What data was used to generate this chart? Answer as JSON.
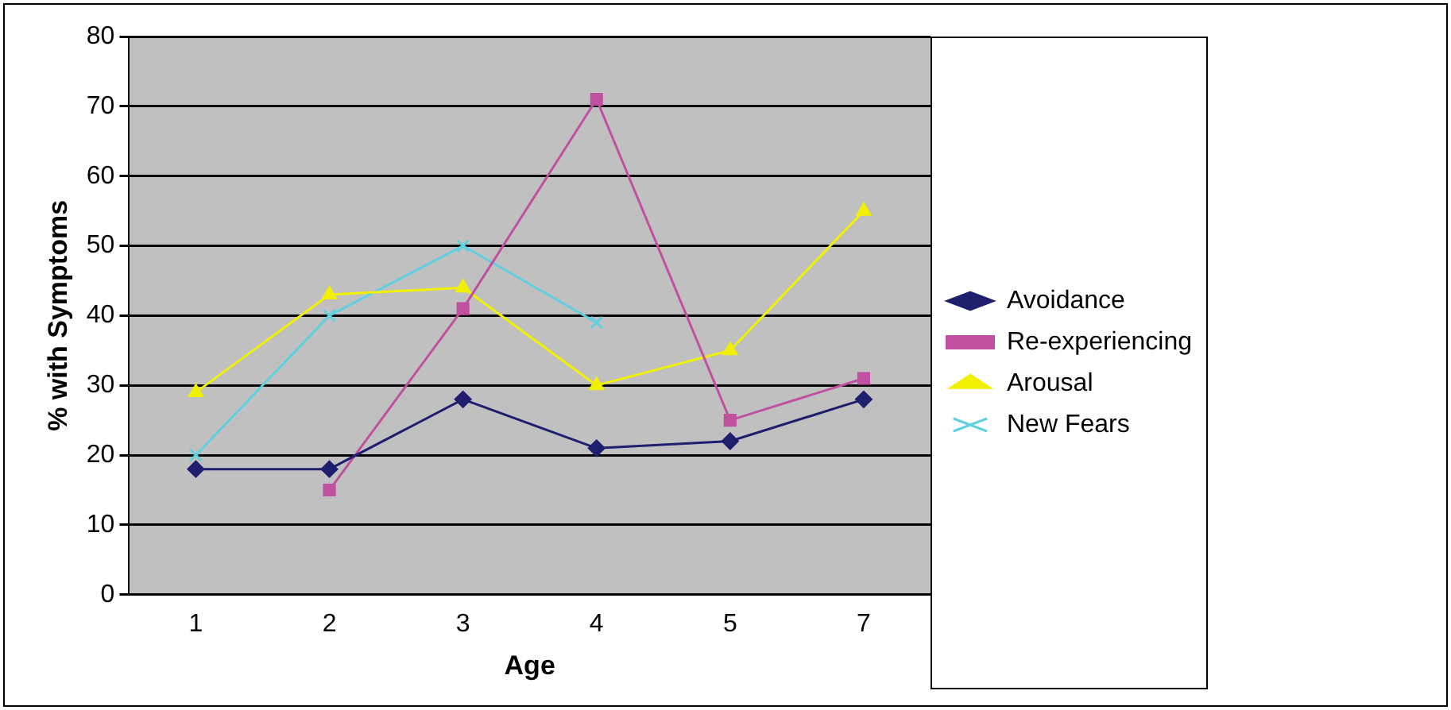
{
  "chart_data": {
    "type": "line",
    "xlabel": "Age",
    "ylabel": "% with Symptoms",
    "categories": [
      "1",
      "2",
      "3",
      "4",
      "5",
      "7"
    ],
    "ylim": [
      0,
      80
    ],
    "yticks": [
      0,
      10,
      20,
      30,
      40,
      50,
      60,
      70,
      80
    ],
    "grid": "y",
    "legend": "right",
    "series": [
      {
        "name": "Avoidance",
        "color": "#1f1f6e",
        "marker": "diamond",
        "values": [
          18,
          18,
          28,
          21,
          22,
          28
        ]
      },
      {
        "name": "Re-experiencing",
        "color": "#c050a0",
        "marker": "square",
        "values": [
          null,
          15,
          41,
          71,
          25,
          31
        ]
      },
      {
        "name": "Arousal",
        "color": "#f0f000",
        "marker": "triangle",
        "values": [
          29,
          43,
          44,
          30,
          35,
          55
        ]
      },
      {
        "name": "New Fears",
        "color": "#60d0e0",
        "marker": "cross",
        "values": [
          20,
          40,
          50,
          39,
          null,
          null
        ]
      }
    ]
  }
}
